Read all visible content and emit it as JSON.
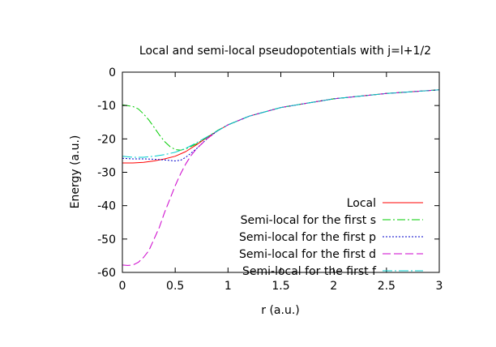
{
  "chart_data": {
    "type": "line",
    "title": "Local and semi-local pseudopotentials with j=l+1/2",
    "xlabel": "r (a.u.)",
    "ylabel": "Energy (a.u.)",
    "xlim": [
      0,
      3
    ],
    "ylim": [
      -60,
      0
    ],
    "xticks": [
      0,
      0.5,
      1,
      1.5,
      2,
      2.5,
      3
    ],
    "xtick_labels": [
      "0",
      "0.5",
      "1",
      "1.5",
      "2",
      "2.5",
      "3"
    ],
    "yticks": [
      0,
      -10,
      -20,
      -30,
      -40,
      -50,
      -60
    ],
    "ytick_labels": [
      "0",
      "-10",
      "-20",
      "-30",
      "-40",
      "-50",
      "-60"
    ],
    "grid": false,
    "legend_position": "bottom-right",
    "series": [
      {
        "name": "Local",
        "color": "#ff0000",
        "dash": "solid",
        "x": [
          0,
          0.1,
          0.2,
          0.3,
          0.4,
          0.5,
          0.6,
          0.7,
          0.8,
          0.9,
          1.0,
          1.2,
          1.5,
          2.0,
          2.5,
          3.0
        ],
        "y": [
          -27.2,
          -27.2,
          -27.0,
          -26.6,
          -26.0,
          -25.2,
          -23.8,
          -21.8,
          -19.6,
          -17.6,
          -15.8,
          -13.2,
          -10.6,
          -8.0,
          -6.4,
          -5.3
        ]
      },
      {
        "name": "Semi-local for the first s",
        "color": "#00cc00",
        "dash": "10,3,2,3",
        "x": [
          0,
          0.1,
          0.15,
          0.2,
          0.25,
          0.3,
          0.35,
          0.4,
          0.45,
          0.5,
          0.55,
          0.6,
          0.7,
          0.8,
          0.9,
          1.0,
          1.2,
          1.5,
          2.0,
          2.5,
          3.0
        ],
        "y": [
          -9.8,
          -10.3,
          -11.0,
          -12.5,
          -14.3,
          -16.5,
          -18.8,
          -20.8,
          -22.3,
          -23.2,
          -23.4,
          -23.0,
          -21.5,
          -19.5,
          -17.5,
          -15.8,
          -13.2,
          -10.6,
          -8.0,
          -6.4,
          -5.3
        ]
      },
      {
        "name": "Semi-local for the first p",
        "color": "#0000cc",
        "dash": "2,2",
        "x": [
          0,
          0.1,
          0.2,
          0.3,
          0.4,
          0.5,
          0.55,
          0.6,
          0.7,
          0.8,
          0.9,
          1.0,
          1.2,
          1.5,
          2.0,
          2.5,
          3.0
        ],
        "y": [
          -25.8,
          -26.0,
          -26.0,
          -26.1,
          -26.3,
          -26.6,
          -26.4,
          -25.5,
          -23.0,
          -20.0,
          -17.6,
          -15.8,
          -13.2,
          -10.6,
          -8.0,
          -6.4,
          -5.3
        ]
      },
      {
        "name": "Semi-local for the first d",
        "color": "#cc00cc",
        "dash": "10,4",
        "x": [
          0,
          0.05,
          0.1,
          0.15,
          0.2,
          0.25,
          0.3,
          0.35,
          0.4,
          0.45,
          0.5,
          0.55,
          0.6,
          0.65,
          0.7,
          0.8,
          0.9,
          1.0,
          1.2,
          1.5,
          2.0,
          2.5,
          3.0
        ],
        "y": [
          -57.8,
          -57.9,
          -57.8,
          -57.0,
          -55.5,
          -53.5,
          -50.0,
          -46.5,
          -42.0,
          -38.0,
          -34.0,
          -30.5,
          -27.5,
          -25.0,
          -23.0,
          -20.0,
          -17.6,
          -15.8,
          -13.2,
          -10.6,
          -8.0,
          -6.4,
          -5.3
        ]
      },
      {
        "name": "Semi-local for the first f",
        "color": "#00cccc",
        "dash": "12,3,2,3",
        "x": [
          0,
          0.1,
          0.2,
          0.3,
          0.4,
          0.5,
          0.6,
          0.7,
          0.8,
          0.9,
          1.0,
          1.2,
          1.5,
          2.0,
          2.5,
          3.0
        ],
        "y": [
          -25.2,
          -25.5,
          -25.5,
          -25.2,
          -24.7,
          -24.0,
          -22.8,
          -21.2,
          -19.4,
          -17.6,
          -15.8,
          -13.2,
          -10.6,
          -8.0,
          -6.4,
          -5.3
        ]
      }
    ]
  }
}
